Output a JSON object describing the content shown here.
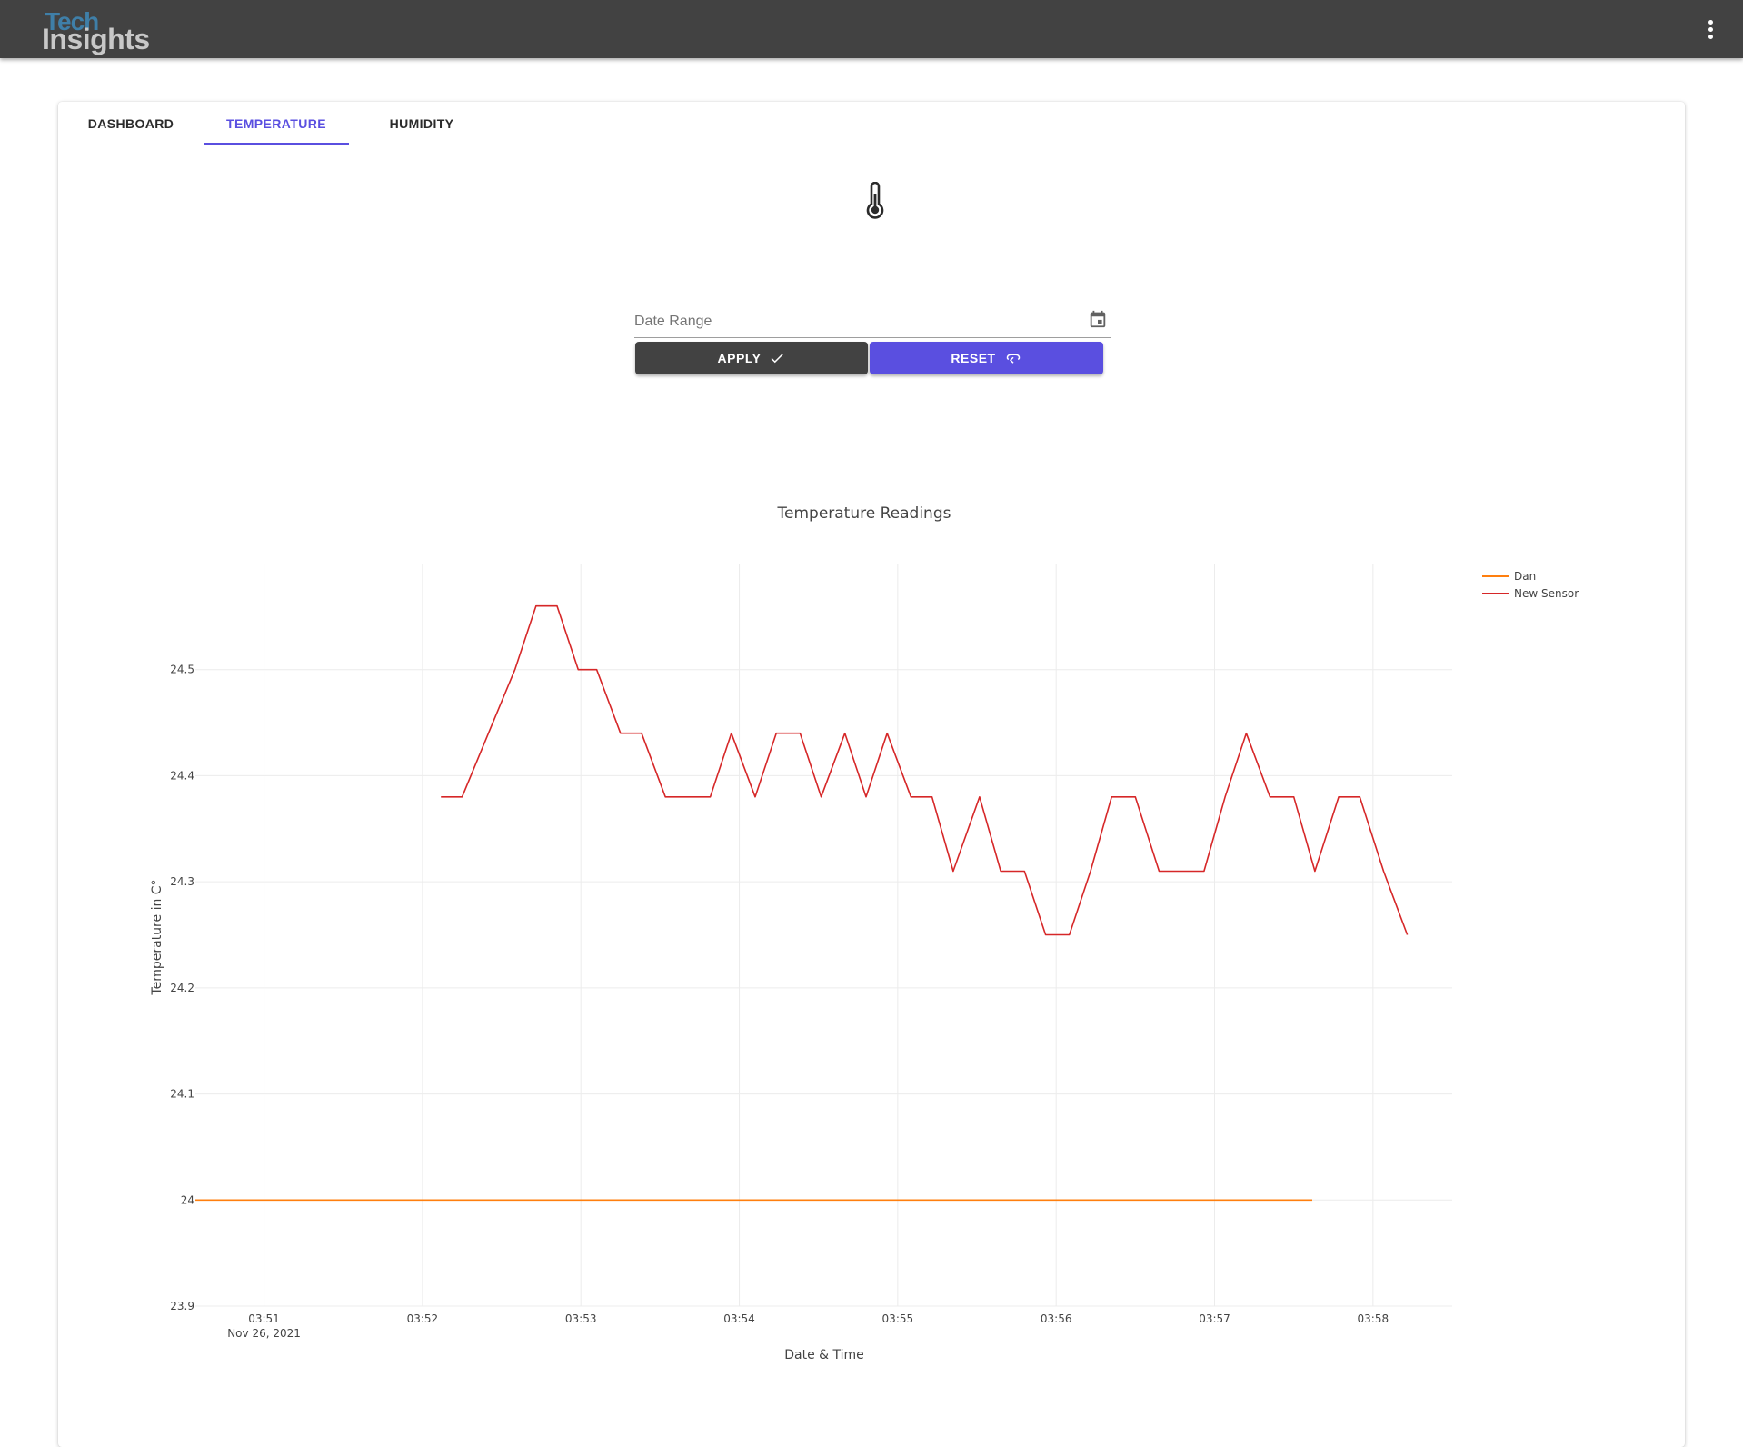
{
  "appbar": {
    "logo_line1": "Tech",
    "logo_line2": "Insights",
    "menu_icon": "more-vert-icon"
  },
  "tabs": [
    {
      "label": "DASHBOARD",
      "active": false
    },
    {
      "label": "TEMPERATURE",
      "active": true
    },
    {
      "label": "HUMIDITY",
      "active": false
    }
  ],
  "page_icon": "thermometer-icon",
  "date_range": {
    "placeholder": "Date Range",
    "value": "",
    "icon": "calendar-icon"
  },
  "buttons": {
    "apply_label": "APPLY",
    "apply_icon": "check-icon",
    "reset_label": "RESET",
    "reset_icon": "reset-icon"
  },
  "colors": {
    "accent": "#5a4fe0",
    "appbar": "#424242",
    "dan_series": "#ff7f0e",
    "new_sensor_series": "#d62728"
  },
  "chart_data": {
    "type": "line",
    "title": "Temperature Readings",
    "xlabel": "Date & Time",
    "ylabel": "Temperature in C°",
    "x_tick_labels": [
      "03:51",
      "03:52",
      "03:53",
      "03:54",
      "03:55",
      "03:56",
      "03:57",
      "03:58"
    ],
    "x_tick_sublabel": "Nov 26, 2021",
    "y_ticks": [
      23.9,
      24,
      24.1,
      24.2,
      24.3,
      24.4,
      24.5
    ],
    "y_tick_labels": [
      "23.9",
      "24",
      "24.1",
      "24.2",
      "24.3",
      "24.4",
      "24.5"
    ],
    "xlim": [
      "2021-11-26 03:50:34",
      "2021-11-26 03:58:30"
    ],
    "ylim": [
      23.9,
      24.6
    ],
    "grid": true,
    "legend_position": "top-right",
    "series": [
      {
        "name": "Dan",
        "color": "#ff7f0e",
        "x": [
          "2021-11-26 03:50:34",
          "2021-11-26 03:57:37"
        ],
        "y": [
          24.0,
          24.0
        ]
      },
      {
        "name": "New Sensor",
        "color": "#d62728",
        "x": [
          "2021-11-26 03:52:07",
          "2021-11-26 03:52:15",
          "2021-11-26 03:52:25",
          "2021-11-26 03:52:35",
          "2021-11-26 03:52:43",
          "2021-11-26 03:52:51",
          "2021-11-26 03:52:59",
          "2021-11-26 03:53:06",
          "2021-11-26 03:53:15",
          "2021-11-26 03:53:23",
          "2021-11-26 03:53:32",
          "2021-11-26 03:53:41",
          "2021-11-26 03:53:49",
          "2021-11-26 03:53:57",
          "2021-11-26 03:54:06",
          "2021-11-26 03:54:14",
          "2021-11-26 03:54:23",
          "2021-11-26 03:54:31",
          "2021-11-26 03:54:40",
          "2021-11-26 03:54:48",
          "2021-11-26 03:54:56",
          "2021-11-26 03:55:05",
          "2021-11-26 03:55:13",
          "2021-11-26 03:55:21",
          "2021-11-26 03:55:31",
          "2021-11-26 03:55:39",
          "2021-11-26 03:55:48",
          "2021-11-26 03:55:56",
          "2021-11-26 03:56:05",
          "2021-11-26 03:56:13",
          "2021-11-26 03:56:21",
          "2021-11-26 03:56:30",
          "2021-11-26 03:56:39",
          "2021-11-26 03:56:47",
          "2021-11-26 03:56:56",
          "2021-11-26 03:57:04",
          "2021-11-26 03:57:12",
          "2021-11-26 03:57:21",
          "2021-11-26 03:57:30",
          "2021-11-26 03:57:38",
          "2021-11-26 03:57:47",
          "2021-11-26 03:57:55",
          "2021-11-26 03:58:04",
          "2021-11-26 03:58:13"
        ],
        "y": [
          24.38,
          24.38,
          24.44,
          24.5,
          24.56,
          24.56,
          24.5,
          24.5,
          24.44,
          24.44,
          24.38,
          24.38,
          24.38,
          24.44,
          24.38,
          24.44,
          24.44,
          24.38,
          24.44,
          24.38,
          24.44,
          24.38,
          24.38,
          24.31,
          24.38,
          24.31,
          24.31,
          24.25,
          24.25,
          24.31,
          24.38,
          24.38,
          24.31,
          24.31,
          24.31,
          24.38,
          24.44,
          24.38,
          24.38,
          24.31,
          24.38,
          24.38,
          24.31,
          24.25
        ]
      }
    ]
  }
}
